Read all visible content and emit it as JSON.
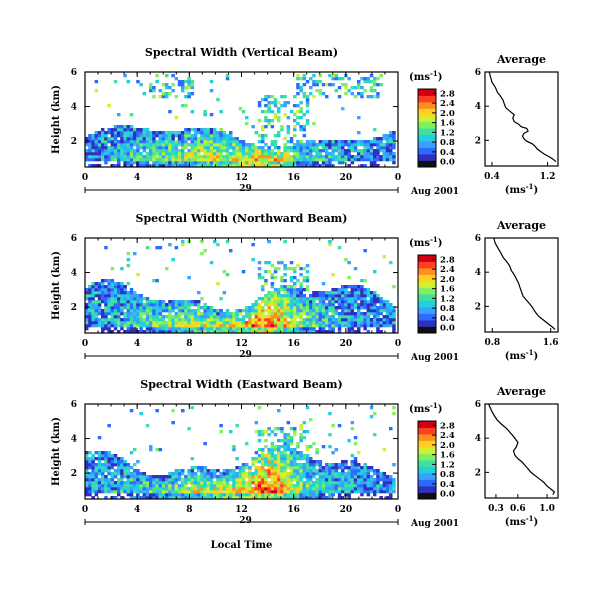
{
  "chart_data": [
    {
      "type": "heatmap",
      "title": "Spectral Width (Vertical Beam)",
      "ylabel": "Height (km)",
      "xlabel": "",
      "date_label": "Aug 2001",
      "day_label": "29",
      "xlim": [
        0,
        24
      ],
      "xticks": [
        "0",
        "4",
        "8",
        "12",
        "16",
        "20",
        "0"
      ],
      "ylim": [
        0.5,
        6
      ],
      "yticks": [
        "2",
        "4",
        "6"
      ],
      "colorbar": {
        "unit": "(ms",
        "unit_sup": "-1",
        "unit_close": ")",
        "ticks": [
          "0.0",
          "0.4",
          "0.8",
          "1.2",
          "1.6",
          "2.0",
          "2.4",
          "2.8"
        ]
      },
      "average": {
        "title": "Average",
        "xlabel": "(ms",
        "xlabel_sup": "-1",
        "xlabel_close": ")",
        "xticks": [
          "0.4",
          "1.2"
        ],
        "xlim": [
          0.3,
          1.35
        ],
        "yticks": [
          "2",
          "4",
          "6"
        ],
        "profile": [
          [
            0.36,
            6.0
          ],
          [
            0.38,
            5.7
          ],
          [
            0.4,
            5.4
          ],
          [
            0.45,
            5.1
          ],
          [
            0.48,
            4.8
          ],
          [
            0.52,
            4.6
          ],
          [
            0.56,
            4.35
          ],
          [
            0.58,
            4.1
          ],
          [
            0.6,
            3.9
          ],
          [
            0.66,
            3.7
          ],
          [
            0.72,
            3.5
          ],
          [
            0.7,
            3.3
          ],
          [
            0.72,
            3.1
          ],
          [
            0.78,
            2.95
          ],
          [
            0.82,
            2.8
          ],
          [
            0.9,
            2.7
          ],
          [
            0.92,
            2.55
          ],
          [
            0.86,
            2.4
          ],
          [
            0.84,
            2.25
          ],
          [
            0.86,
            2.1
          ],
          [
            0.9,
            1.95
          ],
          [
            0.98,
            1.8
          ],
          [
            1.02,
            1.65
          ],
          [
            1.05,
            1.5
          ],
          [
            1.1,
            1.35
          ],
          [
            1.15,
            1.2
          ],
          [
            1.22,
            1.05
          ],
          [
            1.28,
            0.9
          ],
          [
            1.32,
            0.75
          ]
        ]
      }
    },
    {
      "type": "heatmap",
      "title": "Spectral Width (Northward Beam)",
      "ylabel": "Height (km)",
      "xlabel": "",
      "date_label": "Aug 2001",
      "day_label": "29",
      "xlim": [
        0,
        24
      ],
      "xticks": [
        "0",
        "4",
        "8",
        "12",
        "16",
        "20",
        "0"
      ],
      "ylim": [
        0.5,
        6
      ],
      "yticks": [
        "2",
        "4",
        "6"
      ],
      "colorbar": {
        "unit": "(ms",
        "unit_sup": "-1",
        "unit_close": ")",
        "ticks": [
          "0.0",
          "0.4",
          "0.8",
          "1.2",
          "1.6",
          "2.0",
          "2.4",
          "2.8"
        ]
      },
      "average": {
        "title": "Average",
        "xlabel": "(ms",
        "xlabel_sup": "-1",
        "xlabel_close": ")",
        "xticks": [
          "0.8",
          "1.6"
        ],
        "xlim": [
          0.7,
          1.7
        ],
        "yticks": [
          "2",
          "4",
          "6"
        ],
        "profile": [
          [
            0.82,
            6.0
          ],
          [
            0.84,
            5.7
          ],
          [
            0.88,
            5.4
          ],
          [
            0.92,
            5.1
          ],
          [
            0.95,
            4.85
          ],
          [
            1.0,
            4.6
          ],
          [
            1.04,
            4.35
          ],
          [
            1.06,
            4.1
          ],
          [
            1.1,
            3.85
          ],
          [
            1.13,
            3.6
          ],
          [
            1.16,
            3.35
          ],
          [
            1.18,
            3.1
          ],
          [
            1.2,
            2.85
          ],
          [
            1.22,
            2.6
          ],
          [
            1.26,
            2.4
          ],
          [
            1.3,
            2.2
          ],
          [
            1.34,
            2.0
          ],
          [
            1.37,
            1.8
          ],
          [
            1.4,
            1.6
          ],
          [
            1.44,
            1.4
          ],
          [
            1.5,
            1.2
          ],
          [
            1.56,
            1.0
          ],
          [
            1.62,
            0.8
          ],
          [
            1.66,
            0.65
          ]
        ]
      }
    },
    {
      "type": "heatmap",
      "title": "Spectral Width (Eastward Beam)",
      "ylabel": "Height (km)",
      "xlabel": "Local Time",
      "date_label": "Aug 2001",
      "day_label": "29",
      "xlim": [
        0,
        24
      ],
      "xticks": [
        "0",
        "4",
        "8",
        "12",
        "16",
        "20",
        "0"
      ],
      "ylim": [
        0.5,
        6
      ],
      "yticks": [
        "2",
        "4",
        "6"
      ],
      "colorbar": {
        "unit": "(ms",
        "unit_sup": "-1",
        "unit_close": ")",
        "ticks": [
          "0.0",
          "0.4",
          "0.8",
          "1.2",
          "1.6",
          "2.0",
          "2.4",
          "2.8"
        ]
      },
      "average": {
        "title": "Average",
        "xlabel": "(ms",
        "xlabel_sup": "-1",
        "xlabel_close": ")",
        "xticks": [
          "0.3",
          "0.6",
          "1.0"
        ],
        "xlim": [
          0.15,
          1.15
        ],
        "yticks": [
          "2",
          "4",
          "6"
        ],
        "profile": [
          [
            0.2,
            6.0
          ],
          [
            0.24,
            5.6
          ],
          [
            0.28,
            5.3
          ],
          [
            0.32,
            5.05
          ],
          [
            0.38,
            4.8
          ],
          [
            0.45,
            4.55
          ],
          [
            0.5,
            4.3
          ],
          [
            0.55,
            4.05
          ],
          [
            0.6,
            3.75
          ],
          [
            0.58,
            3.5
          ],
          [
            0.54,
            3.25
          ],
          [
            0.56,
            3.0
          ],
          [
            0.6,
            2.8
          ],
          [
            0.66,
            2.6
          ],
          [
            0.7,
            2.4
          ],
          [
            0.74,
            2.2
          ],
          [
            0.78,
            2.0
          ],
          [
            0.84,
            1.8
          ],
          [
            0.9,
            1.6
          ],
          [
            0.96,
            1.4
          ],
          [
            1.0,
            1.2
          ],
          [
            1.06,
            1.0
          ],
          [
            1.1,
            0.85
          ],
          [
            1.08,
            0.7
          ]
        ]
      }
    }
  ],
  "colors": [
    "#101010",
    "#3030c0",
    "#2c6bff",
    "#3ba0ff",
    "#20d0e0",
    "#40e0a0",
    "#80f060",
    "#d0f030",
    "#ffd020",
    "#ff9020",
    "#ff4020",
    "#d00010"
  ]
}
